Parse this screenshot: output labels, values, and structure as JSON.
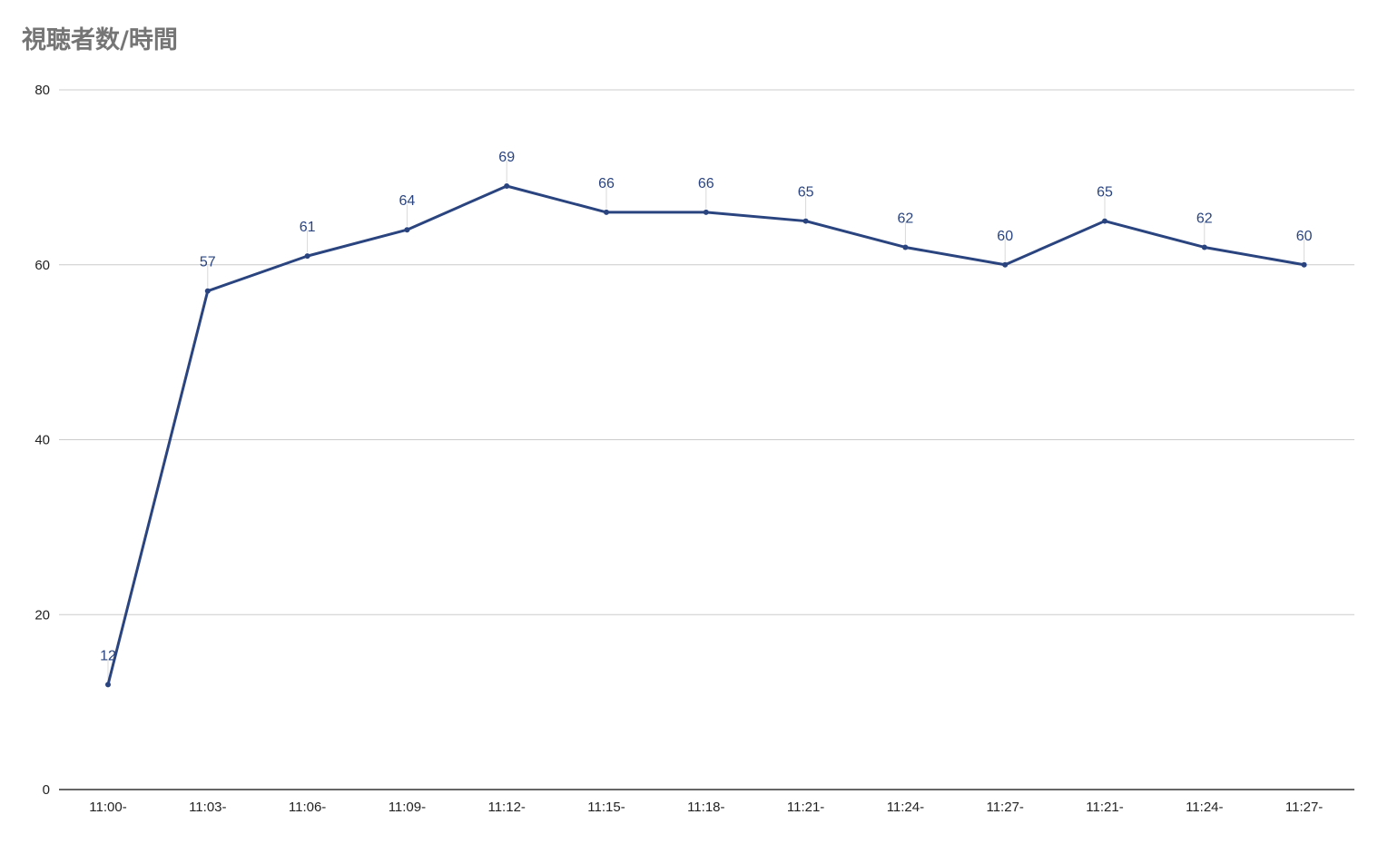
{
  "chart_data": {
    "type": "line",
    "title": "視聴者数/時間",
    "xlabel": "",
    "ylabel": "",
    "categories": [
      "11:00-",
      "11:03-",
      "11:06-",
      "11:09-",
      "11:12-",
      "11:15-",
      "11:18-",
      "11:21-",
      "11:24-",
      "11:27-",
      "11:21-",
      "11:24-",
      "11:27-"
    ],
    "series": [
      {
        "values": [
          12,
          57,
          61,
          64,
          69,
          66,
          66,
          65,
          62,
          60,
          65,
          62,
          60
        ]
      }
    ],
    "ylim": [
      0,
      80
    ],
    "yticks": [
      0,
      20,
      40,
      60,
      80
    ],
    "grid": true,
    "legend": "none",
    "data_labels": true,
    "line_color": "#2a4480",
    "label_color": "#2a4480",
    "grid_color": "#cccccc",
    "axis_color": "#333333"
  }
}
